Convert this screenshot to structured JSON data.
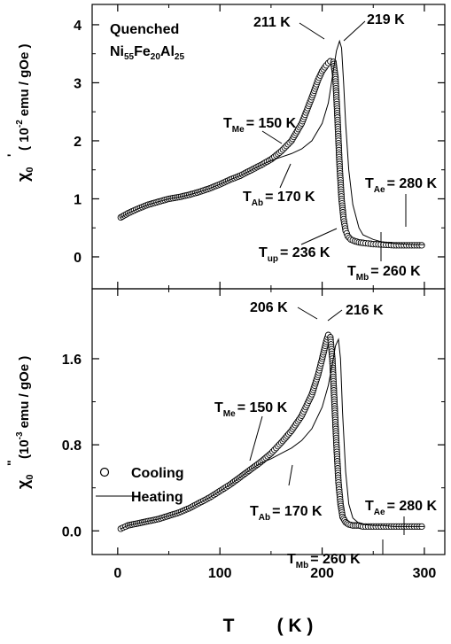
{
  "chart_data": [
    {
      "type": "scatter",
      "panel": "top",
      "title": "",
      "xlabel": "T (K)",
      "ylabel_symbol": "χ",
      "ylabel_sub": "0",
      "ylabel_sup": "'",
      "ylabel_units": "( 10",
      "ylabel_exp": "-2",
      "ylabel_tail": "emu / gOe )",
      "xlim": [
        -25,
        320
      ],
      "ylim": [
        -0.55,
        4.35
      ],
      "yticks": [
        0,
        1,
        2,
        3,
        4
      ],
      "ytick_labels": [
        "0",
        "1",
        "2",
        "3",
        "4"
      ],
      "xticks": [
        0,
        100,
        200,
        300
      ],
      "sample_title": "Quenched",
      "composition": [
        {
          "el": "Ni",
          "sub": "55"
        },
        {
          "el": "Fe",
          "sub": "20"
        },
        {
          "el": "Al",
          "sub": "25"
        }
      ],
      "series": [
        {
          "name": "Cooling",
          "style": "open-circles",
          "x": [
            3,
            10,
            20,
            30,
            40,
            50,
            60,
            70,
            80,
            90,
            100,
            110,
            120,
            130,
            140,
            150,
            160,
            170,
            180,
            190,
            196,
            200,
            204,
            206,
            208,
            211,
            213,
            215,
            217,
            219,
            221,
            223,
            225,
            228,
            232,
            236,
            240,
            250,
            260,
            270,
            280,
            290,
            300
          ],
          "y": [
            0.68,
            0.75,
            0.83,
            0.9,
            0.95,
            1.0,
            1.03,
            1.07,
            1.12,
            1.18,
            1.25,
            1.33,
            1.4,
            1.49,
            1.58,
            1.68,
            1.82,
            2.0,
            2.3,
            2.75,
            3.05,
            3.2,
            3.3,
            3.34,
            3.37,
            3.36,
            3.1,
            2.4,
            1.6,
            1.0,
            0.65,
            0.45,
            0.36,
            0.3,
            0.27,
            0.25,
            0.24,
            0.22,
            0.21,
            0.2,
            0.2,
            0.2,
            0.2
          ]
        },
        {
          "name": "Heating",
          "style": "line",
          "x": [
            3,
            10,
            20,
            30,
            40,
            50,
            60,
            70,
            80,
            90,
            100,
            110,
            120,
            130,
            140,
            150,
            160,
            170,
            180,
            190,
            200,
            206,
            210,
            214,
            217,
            219,
            221,
            223,
            226,
            230,
            236,
            240,
            250,
            260,
            270,
            280,
            290,
            300
          ],
          "y": [
            0.68,
            0.75,
            0.83,
            0.9,
            0.95,
            1.0,
            1.03,
            1.07,
            1.12,
            1.18,
            1.25,
            1.33,
            1.4,
            1.49,
            1.58,
            1.66,
            1.72,
            1.78,
            1.86,
            2.0,
            2.3,
            2.65,
            3.1,
            3.55,
            3.72,
            3.6,
            3.0,
            2.3,
            1.5,
            0.9,
            0.5,
            0.38,
            0.3,
            0.25,
            0.23,
            0.22,
            0.21,
            0.21
          ]
        }
      ],
      "annotations": [
        {
          "text": "211 K",
          "x": 211
        },
        {
          "text": "219 K",
          "x": 219
        },
        {
          "base": "T",
          "sub": "Me",
          "text": "= 150 K",
          "x": 150
        },
        {
          "base": "T",
          "sub": "Ab",
          "text": "= 170 K",
          "x": 170
        },
        {
          "base": "T",
          "sub": "Ae",
          "text": "= 280 K",
          "x": 280
        },
        {
          "base": "T",
          "sub": "up",
          "text": "= 236 K",
          "x": 236
        },
        {
          "base": "T",
          "sub": "Mb",
          "text": "= 260 K",
          "x": 260
        }
      ]
    },
    {
      "type": "scatter",
      "panel": "bottom",
      "title": "",
      "xlabel": "T (K)",
      "ylabel_symbol": "χ",
      "ylabel_sub": "0",
      "ylabel_sup": "\"",
      "ylabel_units": "(10",
      "ylabel_exp": "-3",
      "ylabel_tail": "emu / gOe )",
      "xlim": [
        -25,
        320
      ],
      "ylim": [
        -0.22,
        2.25
      ],
      "yticks": [
        0.0,
        0.8,
        1.6
      ],
      "ytick_labels": [
        "0.0",
        "0.8",
        "1.6"
      ],
      "xticks": [
        0,
        100,
        200,
        300
      ],
      "xtick_labels": [
        "0",
        "100",
        "200",
        "300"
      ],
      "series": [
        {
          "name": "Cooling",
          "style": "open-circles",
          "x": [
            3,
            10,
            20,
            30,
            40,
            50,
            60,
            70,
            80,
            90,
            100,
            110,
            120,
            130,
            140,
            150,
            160,
            170,
            180,
            190,
            196,
            200,
            204,
            206,
            208,
            210,
            212,
            214,
            216,
            218,
            220,
            223,
            226,
            230,
            236,
            240,
            250,
            260,
            270,
            280,
            290,
            300
          ],
          "y": [
            0.02,
            0.05,
            0.07,
            0.09,
            0.11,
            0.14,
            0.17,
            0.21,
            0.26,
            0.31,
            0.37,
            0.43,
            0.5,
            0.57,
            0.64,
            0.72,
            0.82,
            0.93,
            1.07,
            1.27,
            1.45,
            1.6,
            1.76,
            1.82,
            1.8,
            1.6,
            1.2,
            0.8,
            0.45,
            0.25,
            0.13,
            0.08,
            0.06,
            0.05,
            0.05,
            0.04,
            0.04,
            0.04,
            0.04,
            0.04,
            0.04,
            0.04
          ]
        },
        {
          "name": "Heating",
          "style": "line",
          "x": [
            3,
            10,
            20,
            30,
            40,
            50,
            60,
            70,
            80,
            90,
            100,
            110,
            120,
            130,
            140,
            150,
            160,
            170,
            180,
            190,
            200,
            206,
            210,
            213,
            216,
            218,
            220,
            223,
            226,
            230,
            236,
            240,
            250,
            260,
            270,
            280,
            290,
            300
          ],
          "y": [
            0.02,
            0.05,
            0.07,
            0.09,
            0.11,
            0.14,
            0.17,
            0.21,
            0.26,
            0.31,
            0.37,
            0.43,
            0.5,
            0.57,
            0.63,
            0.67,
            0.72,
            0.77,
            0.84,
            0.95,
            1.15,
            1.35,
            1.55,
            1.72,
            1.78,
            1.6,
            1.1,
            0.55,
            0.25,
            0.12,
            0.07,
            0.06,
            0.05,
            0.05,
            0.04,
            0.04,
            0.04,
            0.04
          ]
        }
      ],
      "legend": [
        "Cooling",
        "Heating"
      ],
      "annotations": [
        {
          "text": "206 K",
          "x": 206
        },
        {
          "text": "216 K",
          "x": 216
        },
        {
          "base": "T",
          "sub": "Me",
          "text": "= 150 K",
          "x": 150
        },
        {
          "base": "T",
          "sub": "Ab",
          "text": "= 170 K",
          "x": 170
        },
        {
          "base": "T",
          "sub": "Ae",
          "text": "= 280 K",
          "x": 280
        },
        {
          "base": "T",
          "sub": "Mb",
          "text": "= 260 K",
          "x": 260
        }
      ]
    }
  ],
  "xaxis": {
    "main": "T",
    "unit": "( K )"
  }
}
